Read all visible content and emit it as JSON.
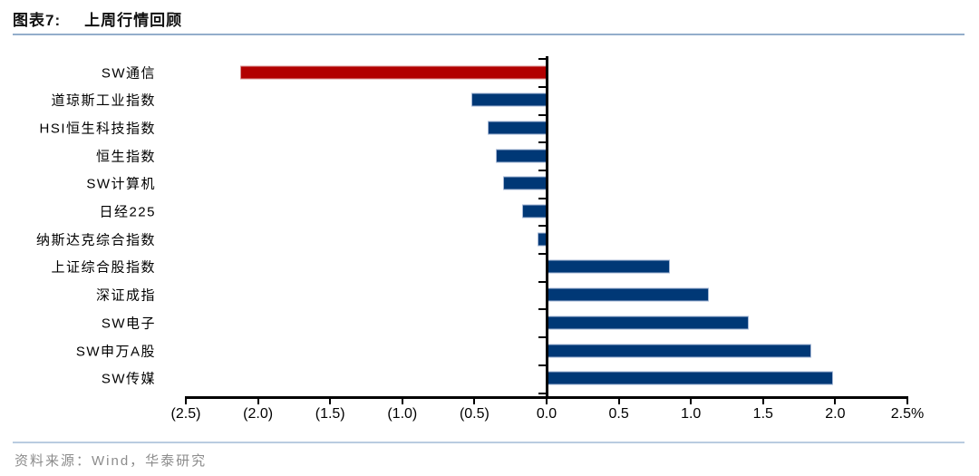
{
  "header": {
    "figure_label": "图表7:",
    "figure_title": "上周行情回顾"
  },
  "footer": {
    "source_text": "资料来源：Wind，华泰研究"
  },
  "chart_data": {
    "type": "bar",
    "orientation": "horizontal",
    "title": "上周行情回顾",
    "unit": "%",
    "categories": [
      "SW通信",
      "道琼斯工业指数",
      "HSI恒生科技指数",
      "恒生指数",
      "SW计算机",
      "日经225",
      "纳斯达克综合指数",
      "上证综合股指数",
      "深证成指",
      "SW电子",
      "SW申万A股",
      "SW传媒"
    ],
    "values": [
      -2.12,
      -0.52,
      -0.41,
      -0.35,
      -0.3,
      -0.17,
      -0.06,
      0.84,
      1.11,
      1.39,
      1.82,
      1.97
    ],
    "highlight_index": 0,
    "bar_color_default": "#003876",
    "bar_color_highlight": "#B20000",
    "xlim": [
      -2.5,
      2.5
    ],
    "x_ticks": [
      -2.5,
      -2.0,
      -1.5,
      -1.0,
      -0.5,
      0.0,
      0.5,
      1.0,
      1.5,
      2.0,
      2.5
    ],
    "x_tick_labels": [
      "(2.5)",
      "(2.0)",
      "(1.5)",
      "(1.0)",
      "(0.5)",
      "0.0",
      "0.5",
      "1.0",
      "1.5",
      "2.0",
      "2.5%"
    ],
    "grid": false,
    "legend": null
  }
}
